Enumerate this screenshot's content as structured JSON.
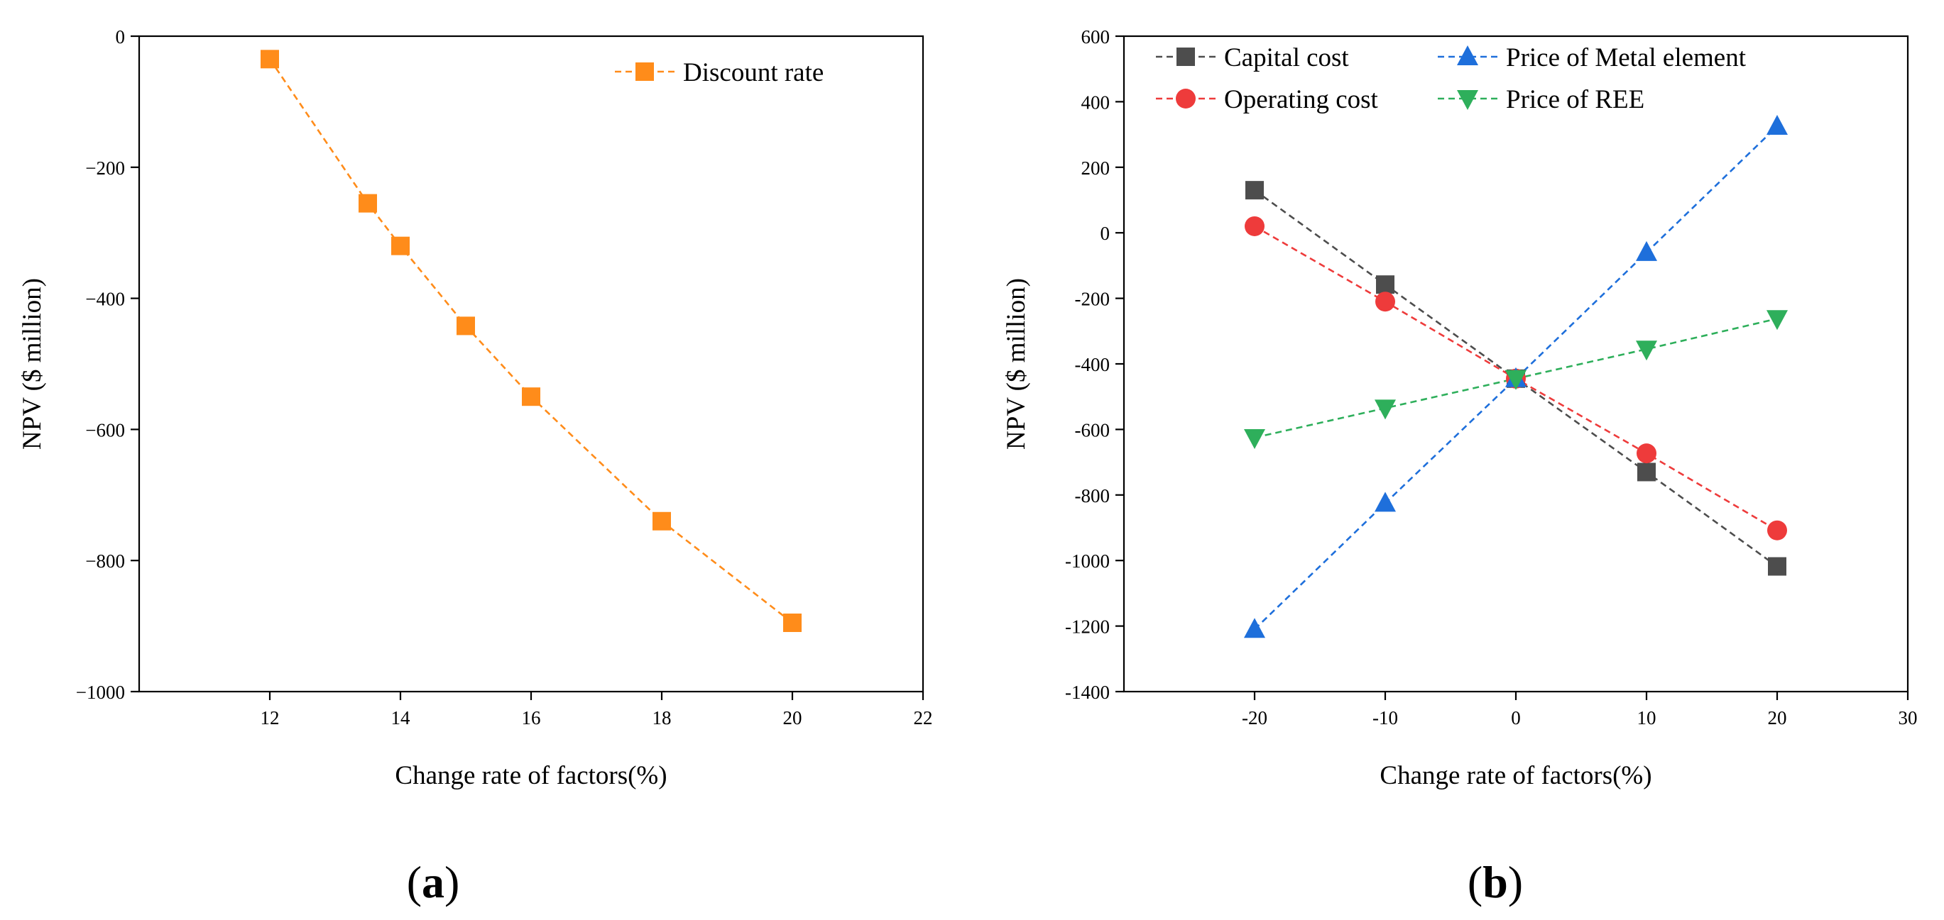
{
  "figure": {
    "panels": [
      {
        "letter": "a",
        "open": "(",
        "close": ")"
      },
      {
        "letter": "b",
        "open": "(",
        "close": ")"
      }
    ]
  },
  "chart_data": [
    {
      "type": "line",
      "panel": "a",
      "xlabel": "Change rate of factors(%)",
      "ylabel": "NPV ($ million)",
      "xlim": [
        10,
        22
      ],
      "ylim": [
        -1000,
        0
      ],
      "xticks": [
        12,
        14,
        16,
        18,
        20,
        22
      ],
      "xtick_labels": [
        "12",
        "14",
        "16",
        "18",
        "20",
        "22"
      ],
      "yticks": [
        0,
        -200,
        -400,
        -600,
        -800,
        -1000
      ],
      "ytick_labels": [
        "0",
        "−200",
        "−400",
        "−600",
        "−800",
        "−1000"
      ],
      "legend_position": "top-right",
      "series": [
        {
          "name": "Discount rate",
          "color": "#FF8C1A",
          "marker": "square",
          "x": [
            12,
            13.5,
            14,
            15,
            16,
            18,
            20
          ],
          "y": [
            -35,
            -255,
            -320,
            -442,
            -550,
            -740,
            -895
          ]
        }
      ]
    },
    {
      "type": "line",
      "panel": "b",
      "xlabel": "Change rate of factors(%)",
      "ylabel": "NPV ($ million)",
      "xlim": [
        -30,
        30
      ],
      "ylim": [
        -1400,
        600
      ],
      "xticks": [
        -20,
        -10,
        0,
        10,
        20,
        30
      ],
      "xtick_labels": [
        "-20",
        "-10",
        "0",
        "10",
        "20",
        "30"
      ],
      "yticks": [
        600,
        400,
        200,
        0,
        -200,
        -400,
        -600,
        -800,
        -1000,
        -1200,
        -1400
      ],
      "ytick_labels": [
        "600",
        "400",
        "200",
        "0",
        "-200",
        "-400",
        "-600",
        "-800",
        "-1000",
        "-1200",
        "-1400"
      ],
      "legend_position": "top-left",
      "series": [
        {
          "name": "Capital cost",
          "color": "#4D4D4D",
          "marker": "square",
          "x": [
            -20,
            -10,
            0,
            10,
            20
          ],
          "y": [
            130,
            -158,
            -445,
            -730,
            -1018
          ]
        },
        {
          "name": "Operating cost",
          "color": "#EE3B3B",
          "marker": "circle",
          "x": [
            -20,
            -10,
            0,
            10,
            20
          ],
          "y": [
            20,
            -210,
            -445,
            -673,
            -908
          ]
        },
        {
          "name": "Price of Metal element",
          "color": "#1E6FDB",
          "marker": "triangle-up",
          "x": [
            -20,
            -10,
            0,
            10,
            20
          ],
          "y": [
            -1210,
            -825,
            -445,
            -60,
            325
          ]
        },
        {
          "name": "Price of REE",
          "color": "#2EAF5B",
          "marker": "triangle-down",
          "x": [
            -20,
            -10,
            0,
            10,
            20
          ],
          "y": [
            -625,
            -535,
            -445,
            -355,
            -262
          ]
        }
      ]
    }
  ]
}
